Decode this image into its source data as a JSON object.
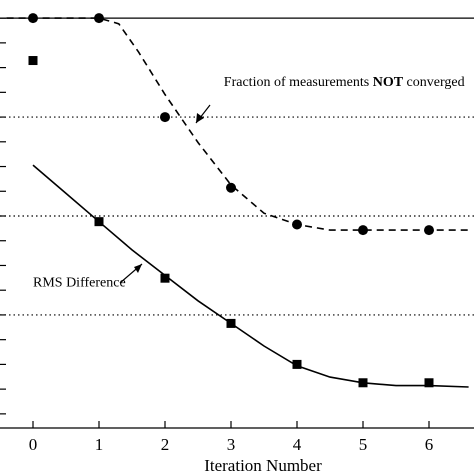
{
  "chart_data": {
    "type": "line",
    "xlabel": "Iteration Number",
    "ylabel": "",
    "xlim": [
      -0.4,
      6.6
    ],
    "ylim": [
      0,
      1.5
    ],
    "x_ticks": [
      0,
      1,
      2,
      3,
      4,
      5,
      6
    ],
    "x_tick_labels": [
      "0",
      "1",
      "2",
      "3",
      "4",
      "5",
      "6"
    ],
    "grid": "horizontal dotted lines",
    "grid_values": [
      0.4,
      0.75,
      1.1
    ],
    "top_line_value": 1.45,
    "series": [
      {
        "marker": "circle",
        "line_style": "dashed",
        "points": [
          [
            0,
            1.45
          ],
          [
            1,
            1.45
          ],
          [
            2,
            1.1
          ],
          [
            3,
            0.85
          ],
          [
            4,
            0.72
          ],
          [
            5,
            0.7
          ],
          [
            6,
            0.7
          ]
        ],
        "curve": [
          [
            -0.4,
            1.45
          ],
          [
            0.4,
            1.45
          ],
          [
            1.0,
            1.45
          ],
          [
            1.3,
            1.43
          ],
          [
            1.6,
            1.33
          ],
          [
            2.0,
            1.18
          ],
          [
            2.5,
            1.01
          ],
          [
            3.0,
            0.86
          ],
          [
            3.5,
            0.76
          ],
          [
            4.0,
            0.72
          ],
          [
            4.5,
            0.7
          ],
          [
            5.0,
            0.7
          ],
          [
            6.0,
            0.7
          ],
          [
            6.6,
            0.7
          ]
        ]
      },
      {
        "marker": "square",
        "line_style": "solid",
        "points": [
          [
            0,
            1.3
          ],
          [
            1,
            0.73
          ],
          [
            2,
            0.53
          ],
          [
            3,
            0.37
          ],
          [
            4,
            0.225
          ],
          [
            5,
            0.16
          ],
          [
            6,
            0.16
          ]
        ],
        "curve": [
          [
            0,
            0.93
          ],
          [
            0.5,
            0.83
          ],
          [
            1.0,
            0.73
          ],
          [
            1.5,
            0.63
          ],
          [
            2.0,
            0.54
          ],
          [
            2.5,
            0.45
          ],
          [
            3.0,
            0.37
          ],
          [
            3.5,
            0.29
          ],
          [
            4.0,
            0.22
          ],
          [
            4.5,
            0.18
          ],
          [
            5.0,
            0.16
          ],
          [
            5.5,
            0.15
          ],
          [
            6.0,
            0.15
          ],
          [
            6.6,
            0.145
          ]
        ]
      }
    ],
    "annotations": [
      {
        "text_parts": [
          "Fraction of measurements ",
          "NOT",
          " converged"
        ],
        "x": 3.8,
        "y": 1.21
      },
      {
        "text": "RMS Difference",
        "x": 0.0,
        "y": 0.5
      }
    ]
  }
}
